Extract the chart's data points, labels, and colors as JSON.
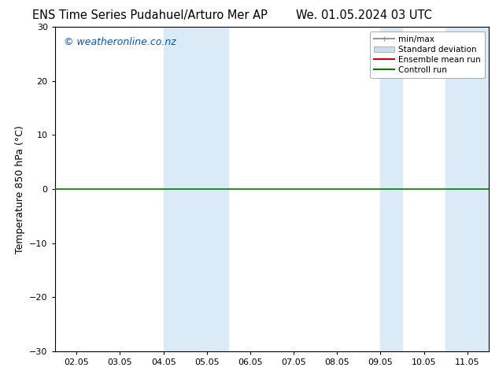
{
  "title_left": "ENS Time Series Pudahuel/Arturo Mer AP",
  "title_right": "We. 01.05.2024 03 UTC",
  "ylabel": "Temperature 850 hPa (°C)",
  "ylim": [
    -30,
    30
  ],
  "yticks": [
    -30,
    -20,
    -10,
    0,
    10,
    20,
    30
  ],
  "x_tick_labels": [
    "02.05",
    "03.05",
    "04.05",
    "05.05",
    "06.05",
    "07.05",
    "08.05",
    "09.05",
    "10.05",
    "11.05"
  ],
  "x_tick_positions": [
    0,
    1,
    2,
    3,
    4,
    5,
    6,
    7,
    8,
    9
  ],
  "xlim": [
    -0.5,
    9.5
  ],
  "watermark": "© weatheronline.co.nz",
  "watermark_color": "#0055cc",
  "bg_color": "#ffffff",
  "plot_bg_color": "#ffffff",
  "shaded_regions": [
    {
      "x_start": 2.0,
      "x_end": 3.5,
      "color": "#daeaf7"
    },
    {
      "x_start": 7.0,
      "x_end": 7.5,
      "color": "#daeaf7"
    },
    {
      "x_start": 8.5,
      "x_end": 9.5,
      "color": "#daeaf7"
    }
  ],
  "hline_y": 0,
  "hline_color": "#007700",
  "hline_lw": 1.2,
  "legend_entries": [
    {
      "label": "min/max",
      "color": "#999999",
      "lw": 1.5,
      "style": "solid"
    },
    {
      "label": "Standard deviation",
      "color": "#ccddf0",
      "lw": 8,
      "style": "solid"
    },
    {
      "label": "Ensemble mean run",
      "color": "#cc0000",
      "lw": 1.5,
      "style": "solid"
    },
    {
      "label": "Controll run",
      "color": "#007700",
      "lw": 1.5,
      "style": "solid"
    }
  ],
  "title_fontsize": 10.5,
  "axis_label_fontsize": 9,
  "tick_fontsize": 8,
  "watermark_fontsize": 9,
  "border_color": "#000000",
  "fig_width": 6.34,
  "fig_height": 4.9
}
